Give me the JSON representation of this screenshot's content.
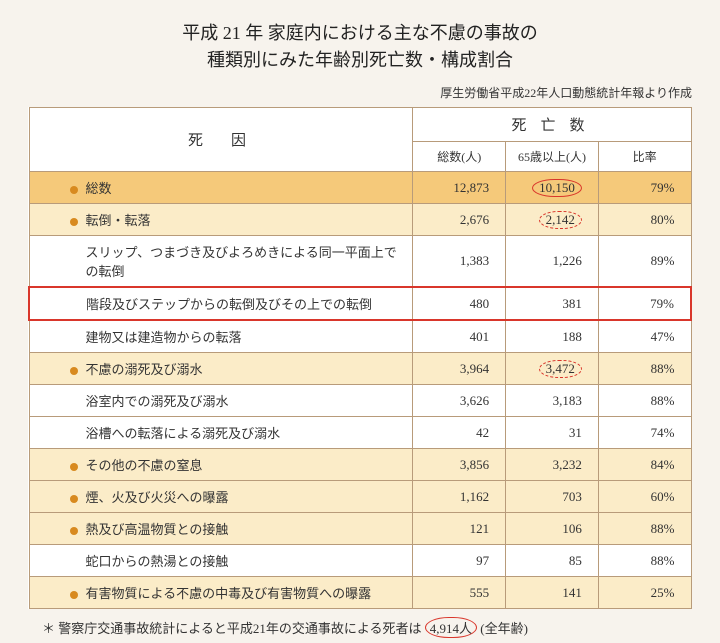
{
  "title_line1": "平成 21 年 家庭内における主な不慮の事故の",
  "title_line2": "種類別にみた年齢別死亡数・構成割合",
  "source": "厚生労働省平成22年人口動態統計年報より作成",
  "headers": {
    "cause": "死因",
    "deaths": "死亡数",
    "total": "総数(人)",
    "age65": "65歳以上(人)",
    "ratio": "比率"
  },
  "rows": [
    {
      "label": "総数",
      "total": "12,873",
      "age65": "10,150",
      "ratio": "79%",
      "bullet": true,
      "indent": 0,
      "hl": "total",
      "circle_age65": "solid"
    },
    {
      "label": "転倒・転落",
      "total": "2,676",
      "age65": "2,142",
      "ratio": "80%",
      "bullet": true,
      "indent": 0,
      "hl": "sub",
      "circle_age65": "dashed"
    },
    {
      "label": "スリップ、つまづき及びよろめきによる同一平面上での転倒",
      "total": "1,383",
      "age65": "1,226",
      "ratio": "89%",
      "bullet": false,
      "indent": 1
    },
    {
      "label": "階段及びステップからの転倒及びその上での転倒",
      "total": "480",
      "age65": "381",
      "ratio": "79%",
      "bullet": false,
      "indent": 1,
      "box": true
    },
    {
      "label": "建物又は建造物からの転落",
      "total": "401",
      "age65": "188",
      "ratio": "47%",
      "bullet": false,
      "indent": 1
    },
    {
      "label": "不慮の溺死及び溺水",
      "total": "3,964",
      "age65": "3,472",
      "ratio": "88%",
      "bullet": true,
      "indent": 0,
      "hl": "sub",
      "circle_age65": "dashed"
    },
    {
      "label": "浴室内での溺死及び溺水",
      "total": "3,626",
      "age65": "3,183",
      "ratio": "88%",
      "bullet": false,
      "indent": 1
    },
    {
      "label": "浴槽への転落による溺死及び溺水",
      "total": "42",
      "age65": "31",
      "ratio": "74%",
      "bullet": false,
      "indent": 1
    },
    {
      "label": "その他の不慮の窒息",
      "total": "3,856",
      "age65": "3,232",
      "ratio": "84%",
      "bullet": true,
      "indent": 0,
      "hl": "sub"
    },
    {
      "label": "煙、火及び火災への曝露",
      "total": "1,162",
      "age65": "703",
      "ratio": "60%",
      "bullet": true,
      "indent": 0,
      "hl": "sub"
    },
    {
      "label": "熱及び高温物質との接触",
      "total": "121",
      "age65": "106",
      "ratio": "88%",
      "bullet": true,
      "indent": 0,
      "hl": "sub"
    },
    {
      "label": "蛇口からの熱湯との接触",
      "total": "97",
      "age65": "85",
      "ratio": "88%",
      "bullet": false,
      "indent": 1
    },
    {
      "label": "有害物質による不慮の中毒及び有害物質への曝露",
      "total": "555",
      "age65": "141",
      "ratio": "25%",
      "bullet": true,
      "indent": 0,
      "hl": "sub"
    }
  ],
  "footnote": {
    "prefix": "＊ 警察庁交通事故統計によると平成21年の交通事故による死者は",
    "value": "4,914人",
    "suffix": "(全年齢)"
  },
  "colors": {
    "bg": "#f7f3ed",
    "border": "#b89b7a",
    "hl_total": "#f5c97a",
    "hl_sub": "#fbecc8",
    "bullet": "#d88a1f",
    "accent": "#d9362b"
  }
}
